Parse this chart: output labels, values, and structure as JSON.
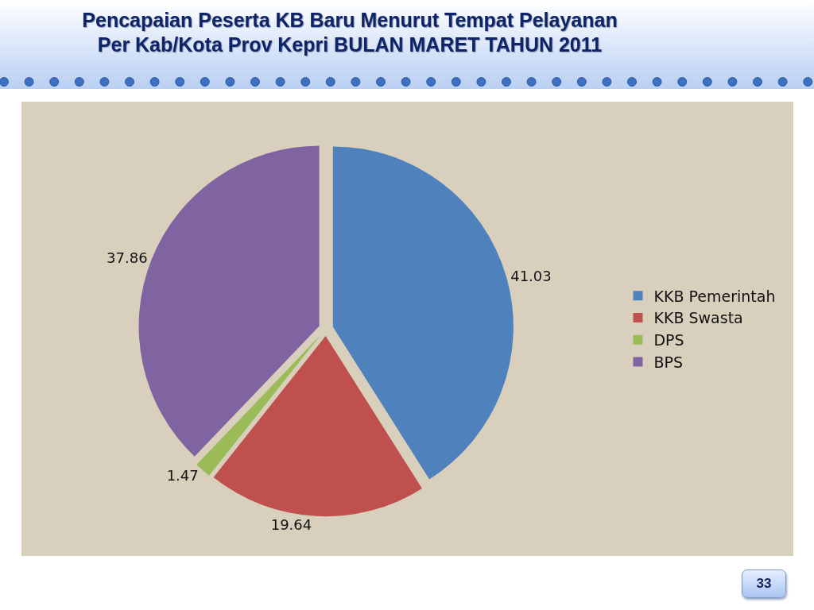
{
  "chart_data": {
    "type": "pie",
    "title": "Pencapaian Peserta KB Baru Menurut Tempat Pelayanan\nPer Kab/Kota Prov Kepri  BULAN MARET TAHUN 2011",
    "categories": [
      "KKB Pemerintah",
      "KKB Swasta",
      "DPS",
      "BPS"
    ],
    "values": [
      41.03,
      19.64,
      1.47,
      37.86
    ],
    "colors": [
      "#4f81bd",
      "#c0504d",
      "#9bbb59",
      "#8064a2"
    ],
    "data_labels": true,
    "legend": "right",
    "annotations": [
      "33"
    ]
  }
}
